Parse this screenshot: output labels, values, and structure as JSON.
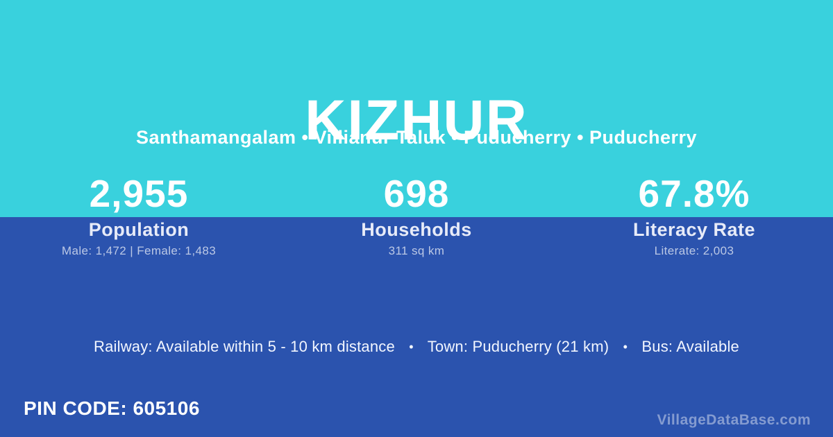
{
  "colors": {
    "hero_background": "#39d1dd",
    "body_background": "#2b53ae",
    "primary_text": "#ffffff",
    "detail_text_opacity": "rgba(255,255,255,0.68)",
    "watermark_text": "rgba(255,255,255,0.42)"
  },
  "header": {
    "title": "KIZHUR",
    "subtitle": "Santhamangalam • Villianur Taluk • Puducherry • Puducherry"
  },
  "stats": [
    {
      "value": "2,955",
      "label": "Population",
      "detail": "Male: 1,472 | Female: 1,483"
    },
    {
      "value": "698",
      "label": "Households",
      "detail": "311 sq km"
    },
    {
      "value": "67.8%",
      "label": "Literacy Rate",
      "detail": "Literate: 2,003"
    }
  ],
  "info": {
    "separator": "•",
    "items": [
      "Railway: Available within 5 - 10 km distance",
      "Town: Puducherry (21 km)",
      "Bus: Available"
    ]
  },
  "footer": {
    "pin_code": "PIN CODE: 605106",
    "watermark": "VillageDataBase.com"
  }
}
